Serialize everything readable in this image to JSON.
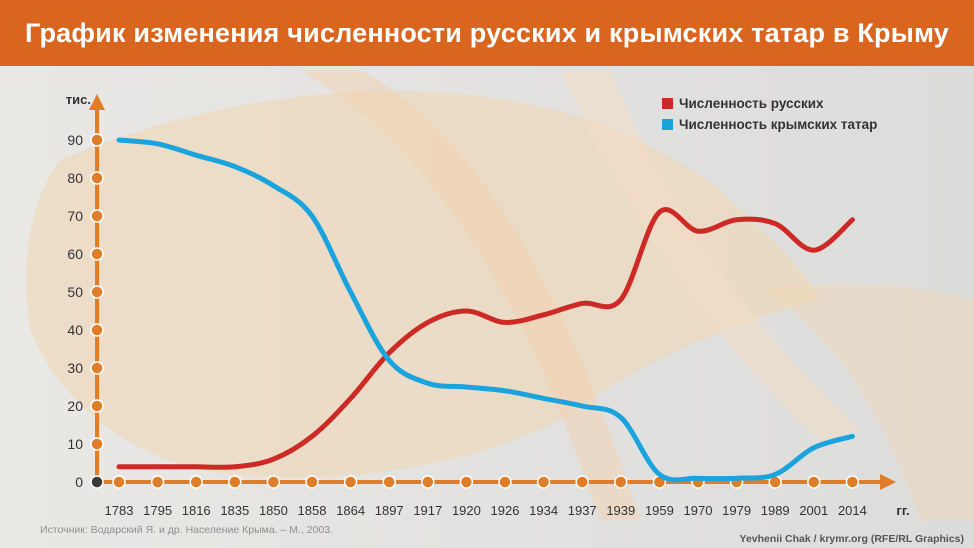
{
  "header": {
    "title": "График изменения численности русских и крымских татар в Крыму"
  },
  "footer": {
    "source": "Источник: Водарский Я. и др. Население Крыма. – М., 2003.",
    "credit": "Yevhenii Chak / krymr.org (RFE/RL Graphics)"
  },
  "colors": {
    "accent": "#d9651f",
    "russians": "#cd2a26",
    "tatars": "#1ba3dd",
    "axis": "#e07d28"
  },
  "legend": {
    "russians": "Численность русских",
    "tatars": "Численность  крымских татар"
  },
  "chart_data": {
    "type": "line",
    "ylabel": "тис.",
    "xlabel": "гг.",
    "ylim": [
      0,
      90
    ],
    "y_ticks": [
      0,
      10,
      20,
      30,
      40,
      50,
      60,
      70,
      80,
      90
    ],
    "categories": [
      "1783",
      "1795",
      "1816",
      "1835",
      "1850",
      "1858",
      "1864",
      "1897",
      "1917",
      "1920",
      "1926",
      "1934",
      "1937",
      "1939",
      "1959",
      "1970",
      "1979",
      "1989",
      "2001",
      "2014"
    ],
    "series": [
      {
        "name": "Численность русских",
        "key": "russians",
        "values": [
          4,
          4,
          4,
          4,
          6,
          12,
          22,
          34,
          42,
          45,
          42,
          44,
          47,
          48,
          71,
          66,
          69,
          68,
          61,
          69
        ]
      },
      {
        "name": "Численность  крымских татар",
        "key": "tatars",
        "values": [
          90,
          89,
          86,
          83,
          78,
          70,
          50,
          32,
          26,
          25,
          24,
          22,
          20,
          17,
          2,
          1,
          1,
          2,
          9,
          12
        ]
      }
    ]
  }
}
